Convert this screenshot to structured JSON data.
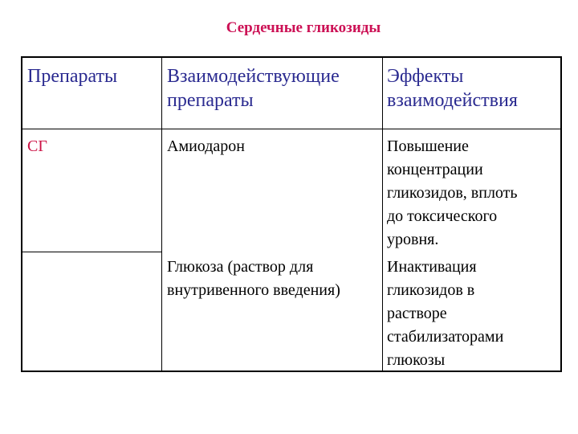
{
  "title": "Сердечные гликозиды",
  "table": {
    "headers": [
      "Препараты",
      "Взаимодействующие препараты",
      "Эффекты взаимодействия"
    ],
    "header_lines": [
      [
        "Препараты"
      ],
      [
        "Взаимодействующие",
        "препараты"
      ],
      [
        "Эффекты",
        "взаимодействия"
      ]
    ],
    "group": "СГ",
    "rows": [
      {
        "drug": "Амиодарон",
        "effect_lines": [
          "Повышение",
          "концентрации",
          "гликозидов, вплоть",
          "до токсического",
          "уровня."
        ]
      },
      {
        "drug_lines": [
          "Глюкоза (раствор для",
          "внутривенного введения)"
        ],
        "effect_lines": [
          "Инактивация",
          "гликозидов в",
          "растворе",
          "стабилизаторами",
          "глюкозы"
        ]
      }
    ]
  },
  "colors": {
    "title": "#cc1155",
    "header_text": "#2a2a90",
    "group_text": "#cc1144"
  }
}
